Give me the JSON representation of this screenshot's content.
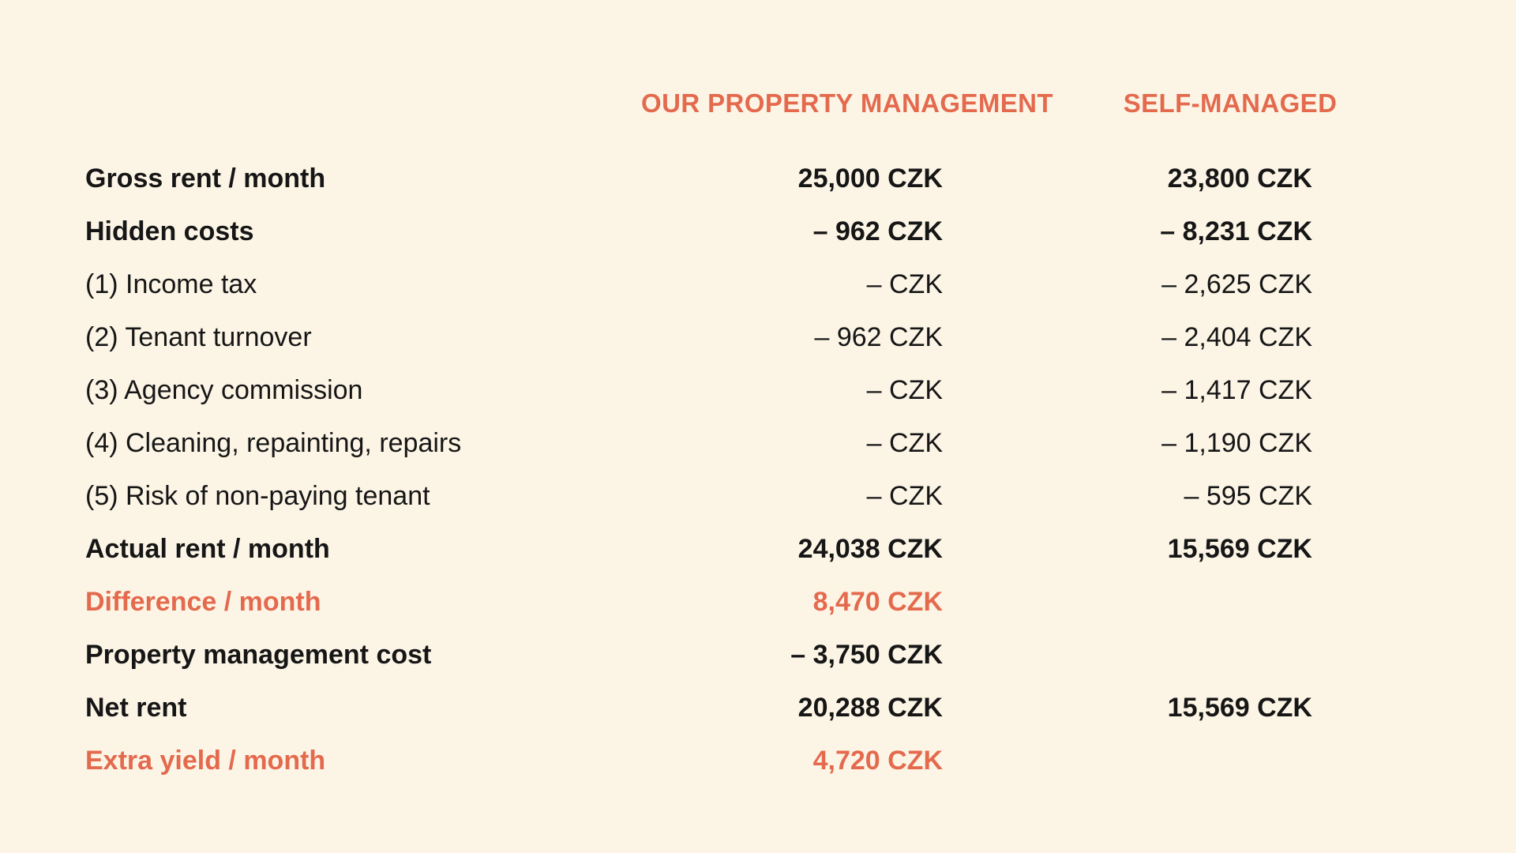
{
  "page": {
    "background_color": "#FCF5E6",
    "accent_color": "#E46A4E",
    "text_color": "#161616"
  },
  "table": {
    "columns": [
      {
        "id": "label",
        "header": ""
      },
      {
        "id": "managed",
        "header": "OUR PROPERTY MANAGEMENT"
      },
      {
        "id": "self",
        "header": "SELF-MANAGED"
      }
    ],
    "rows": [
      {
        "label": "Gross rent / month",
        "managed": "25,000 CZK",
        "self": "23,800 CZK",
        "style": "bold"
      },
      {
        "label": "Hidden costs",
        "managed": "– 962 CZK",
        "self": "– 8,231 CZK",
        "style": "bold"
      },
      {
        "label": "(1) Income tax",
        "managed": "– CZK",
        "self": "– 2,625 CZK",
        "style": "regular"
      },
      {
        "label": "(2) Tenant turnover",
        "managed": "– 962 CZK",
        "self": "– 2,404 CZK",
        "style": "regular"
      },
      {
        "label": "(3) Agency commission",
        "managed": "– CZK",
        "self": "– 1,417 CZK",
        "style": "regular"
      },
      {
        "label": "(4) Cleaning, repainting, repairs",
        "managed": "– CZK",
        "self": "– 1,190 CZK",
        "style": "regular"
      },
      {
        "label": "(5) Risk of non-paying tenant",
        "managed": "– CZK",
        "self": "– 595 CZK",
        "style": "regular"
      },
      {
        "label": "Actual rent / month",
        "managed": "24,038 CZK",
        "self": "15,569 CZK",
        "style": "bold"
      },
      {
        "label": "Difference / month",
        "managed": "8,470 CZK",
        "self": "",
        "style": "accent"
      },
      {
        "label": "Property management cost",
        "managed": "– 3,750 CZK",
        "self": "",
        "style": "bold"
      },
      {
        "label": "Net rent",
        "managed": "20,288 CZK",
        "self": "15,569 CZK",
        "style": "bold"
      },
      {
        "label": "Extra yield / month",
        "managed": "4,720 CZK",
        "self": "",
        "style": "accent"
      }
    ]
  },
  "chart_data": {
    "type": "table",
    "title": "Property management vs self-managed rent comparison",
    "columns": [
      "",
      "OUR PROPERTY MANAGEMENT",
      "SELF-MANAGED"
    ],
    "rows": [
      [
        "Gross rent / month",
        "25,000 CZK",
        "23,800 CZK"
      ],
      [
        "Hidden costs",
        "– 962 CZK",
        "– 8,231 CZK"
      ],
      [
        "(1) Income tax",
        "– CZK",
        "– 2,625 CZK"
      ],
      [
        "(2) Tenant turnover",
        "– 962 CZK",
        "– 2,404 CZK"
      ],
      [
        "(3) Agency commission",
        "– CZK",
        "– 1,417 CZK"
      ],
      [
        "(4) Cleaning, repainting, repairs",
        "– CZK",
        "– 1,190 CZK"
      ],
      [
        "(5) Risk of non-paying tenant",
        "– CZK",
        "– 595 CZK"
      ],
      [
        "Actual rent / month",
        "24,038 CZK",
        "15,569 CZK"
      ],
      [
        "Difference / month",
        "8,470 CZK",
        ""
      ],
      [
        "Property management cost",
        "– 3,750 CZK",
        ""
      ],
      [
        "Net rent",
        "20,288 CZK",
        "15,569 CZK"
      ],
      [
        "Extra yield / month",
        "4,720 CZK",
        ""
      ]
    ],
    "currency": "CZK",
    "numeric_values": {
      "managed": {
        "gross_rent": 25000,
        "hidden_costs": -962,
        "income_tax": null,
        "tenant_turnover": -962,
        "agency_commission": null,
        "cleaning_repainting_repairs": null,
        "risk_non_paying_tenant": null,
        "actual_rent": 24038,
        "difference": 8470,
        "property_management_cost": -3750,
        "net_rent": 20288,
        "extra_yield": 4720
      },
      "self_managed": {
        "gross_rent": 23800,
        "hidden_costs": -8231,
        "income_tax": -2625,
        "tenant_turnover": -2404,
        "agency_commission": -1417,
        "cleaning_repainting_repairs": -1190,
        "risk_non_paying_tenant": -595,
        "actual_rent": 15569,
        "net_rent": 15569
      }
    }
  }
}
